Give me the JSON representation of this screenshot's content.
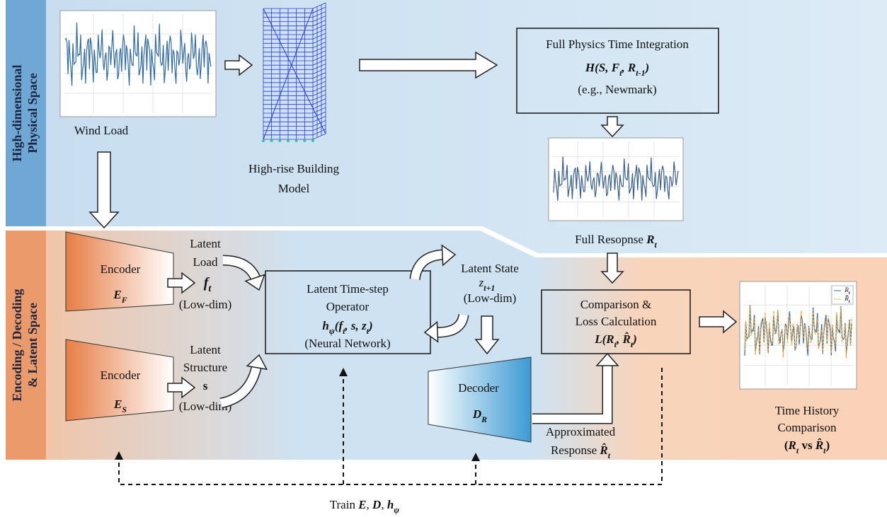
{
  "bands": {
    "physical": [
      "High-dimensional",
      "Physical Space"
    ],
    "latent": [
      "Encoding / Decoding",
      "& Latent Space"
    ]
  },
  "wind_load": "Wind Load",
  "building": [
    "High-rise Building",
    "Model"
  ],
  "physics_box": {
    "title": "Full Physics Time Integration",
    "formula": [
      {
        "text": "H(S, F"
      },
      {
        "text": "t",
        "style": "sub"
      },
      {
        "text": ", R"
      },
      {
        "text": "t-1",
        "style": "sub"
      },
      {
        "text": ")"
      }
    ],
    "note": "(e.g., Newmark)"
  },
  "full_response": [
    {
      "text": "Full Resopnse "
    },
    {
      "text": "R",
      "style": "bi"
    },
    {
      "text": "t",
      "style": "sub"
    }
  ],
  "encoder_f": {
    "title": "Encoder",
    "symbol": [
      {
        "text": "E",
        "style": "bi"
      },
      {
        "text": "F",
        "style": "sub"
      }
    ]
  },
  "encoder_s": {
    "title": "Encoder",
    "symbol": [
      {
        "text": "E",
        "style": "bi"
      },
      {
        "text": "S",
        "style": "sub"
      }
    ]
  },
  "latent_load": {
    "title": [
      "Latent",
      "Load"
    ],
    "symbol": [
      {
        "text": "f",
        "style": "bi"
      },
      {
        "text": "t",
        "style": "sub"
      }
    ],
    "note": "(Low-dim)"
  },
  "latent_structure": {
    "title": [
      "Latent",
      "Structure"
    ],
    "symbol": [
      {
        "text": "s",
        "style": "b"
      }
    ],
    "note": "(Low-dim)"
  },
  "operator": {
    "title": [
      "Latent Time-step",
      "Operator"
    ],
    "formula": [
      {
        "text": "h",
        "style": "bi"
      },
      {
        "text": "ψ",
        "style": "sub"
      },
      {
        "text": "(f",
        "style": "bi"
      },
      {
        "text": "t",
        "style": "sub"
      },
      {
        "text": ", s, z",
        "style": "bi"
      },
      {
        "text": "t",
        "style": "sub"
      },
      {
        "text": ")",
        "style": "bi"
      }
    ],
    "note": "(Neural Network)"
  },
  "latent_state": {
    "title": "Latent State",
    "symbol": [
      {
        "text": "z",
        "style": "it"
      },
      {
        "text": "t+1",
        "style": "sub"
      }
    ],
    "note": "(Low-dim)"
  },
  "decoder": {
    "title": "Decoder",
    "symbol": [
      {
        "text": "D",
        "style": "bi"
      },
      {
        "text": "R",
        "style": "sub"
      }
    ]
  },
  "comparison_box": {
    "title": [
      "Comparison &",
      "Loss Calculation"
    ],
    "formula": [
      {
        "text": "L(R",
        "style": "bi"
      },
      {
        "text": "t",
        "style": "sub"
      },
      {
        "text": ", R̂",
        "style": "bi"
      },
      {
        "text": "t",
        "style": "sub"
      },
      {
        "text": ")",
        "style": "bi"
      }
    ]
  },
  "approximated": {
    "line1": "Approximated",
    "line2": [
      {
        "text": "Response "
      },
      {
        "text": "R̂",
        "style": "bi"
      },
      {
        "text": "t",
        "style": "sub"
      }
    ]
  },
  "comparison_chart": {
    "legend": [
      [
        {
          "text": "R",
          "style": "it"
        },
        {
          "text": "t",
          "style": "sub"
        }
      ],
      [
        {
          "text": "R̂",
          "style": "it"
        },
        {
          "text": "t",
          "style": "sub"
        }
      ]
    ]
  },
  "time_history": {
    "lines": [
      "Time History",
      "Comparison"
    ],
    "formula": [
      {
        "text": "("
      },
      {
        "text": "R",
        "style": "bi"
      },
      {
        "text": "t",
        "style": "sub"
      },
      {
        "text": " vs "
      },
      {
        "text": "R̂",
        "style": "bi"
      },
      {
        "text": "t",
        "style": "sub"
      },
      {
        "text": ")"
      }
    ]
  },
  "train": [
    {
      "text": "Train "
    },
    {
      "text": "E",
      "style": "bi"
    },
    {
      "text": ", "
    },
    {
      "text": "D",
      "style": "bi"
    },
    {
      "text": ", "
    },
    {
      "text": "h",
      "style": "bi"
    },
    {
      "text": "ψ",
      "style": "sub"
    }
  ]
}
